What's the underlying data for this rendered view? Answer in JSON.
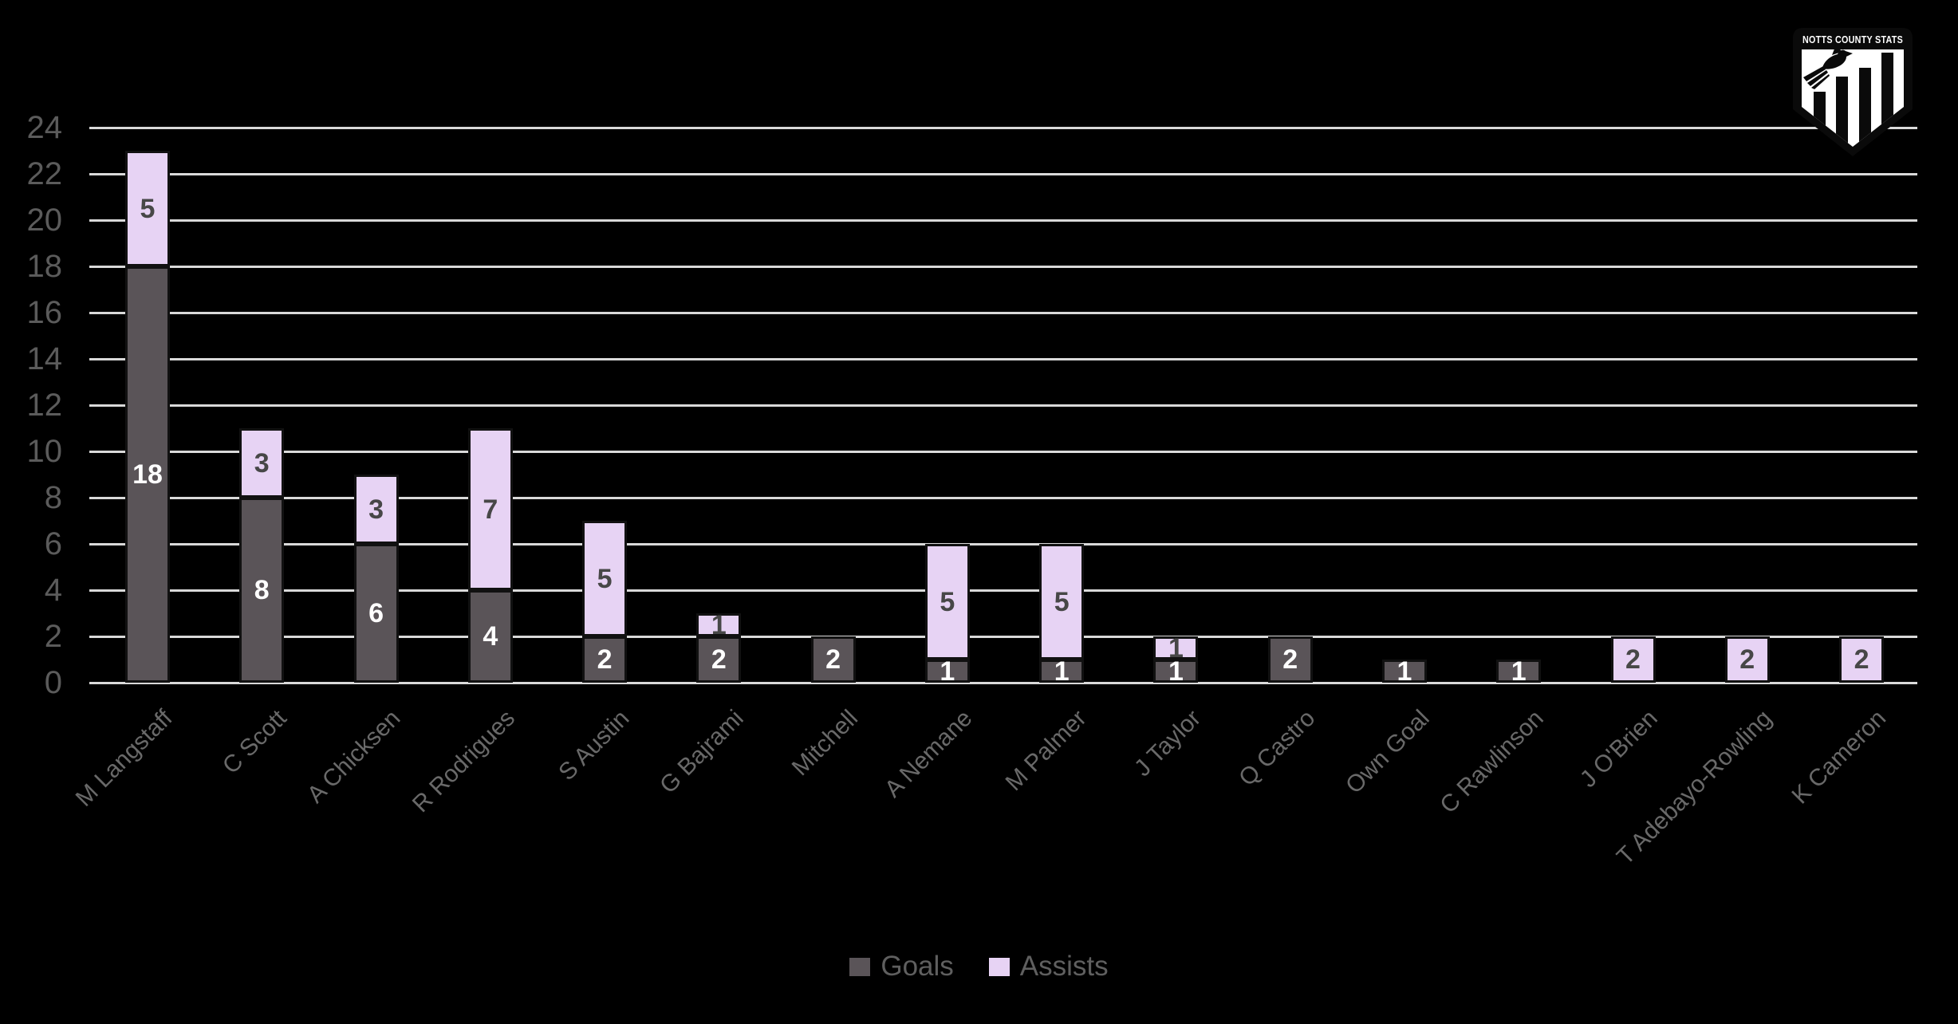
{
  "branding": {
    "logo_title": "NOTTS COUNTY STATS"
  },
  "colors": {
    "background": "#000000",
    "gridline": "#d9d9d9",
    "axis_label": "#5b5b5b",
    "x_label": "#696969",
    "legend_text": "#5f5f5f",
    "goals_bar": "#5a5458",
    "assists_bar": "#e7d3f4",
    "goals_value_text": "#ffffff",
    "assists_value_text": "#474747",
    "bar_outline": "#111111"
  },
  "chart_data": {
    "type": "bar",
    "stacked": true,
    "title": "",
    "xlabel": "",
    "ylabel": "",
    "ylim": [
      0,
      24
    ],
    "ytick_step": 2,
    "grid": true,
    "legend_position": "bottom",
    "value_labels": true,
    "categories": [
      "M Langstaff",
      "C Scott",
      "A Chicksen",
      "R Rodrigues",
      "S Austin",
      "G Bajrami",
      "Mitchell",
      "A Nemane",
      "M Palmer",
      "J Taylor",
      "Q Castro",
      "Own Goal",
      "C Rawlinson",
      "J O'Brien",
      "T Adebayo-Rowling",
      "K Cameron"
    ],
    "series": [
      {
        "name": "Goals",
        "color": "#5a5458",
        "values": [
          18,
          8,
          6,
          4,
          2,
          2,
          2,
          1,
          1,
          1,
          2,
          1,
          1,
          0,
          0,
          0
        ]
      },
      {
        "name": "Assists",
        "color": "#e7d3f4",
        "values": [
          5,
          3,
          3,
          7,
          5,
          1,
          0,
          5,
          5,
          1,
          0,
          0,
          0,
          2,
          2,
          2
        ]
      }
    ]
  }
}
